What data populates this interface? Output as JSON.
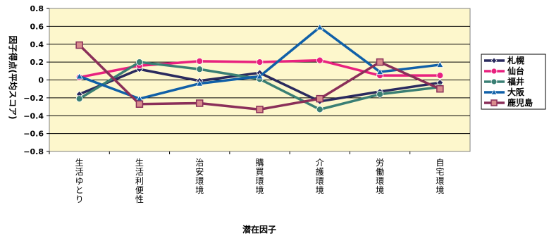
{
  "chart_data": {
    "type": "line",
    "categories": [
      "生活ゆとり",
      "生活利便性",
      "治安環境",
      "購買環境",
      "介護環境",
      "労働環境",
      "自宅環境"
    ],
    "xlabel": "潜在因子",
    "ylabel": "因子得点(平均スコア)",
    "ylim": [
      -0.8,
      0.8
    ],
    "yticks": [
      -0.8,
      -0.6,
      -0.4,
      -0.2,
      0,
      0.2,
      0.4,
      0.6,
      0.8
    ],
    "ytick_labels": [
      "−0.8",
      "−0.6",
      "−0.4",
      "−0.2",
      "0",
      "0.2",
      "0.4",
      "0.6",
      "0.8"
    ],
    "grid": true,
    "legend_position": "right",
    "plot_background": "#fdf7cc",
    "series": [
      {
        "name": "札幌",
        "color": "#2a2a5e",
        "marker": "diamond",
        "values": [
          -0.16,
          0.12,
          -0.01,
          0.08,
          -0.24,
          -0.13,
          -0.03
        ]
      },
      {
        "name": "仙台",
        "color": "#e8217f",
        "marker": "circle",
        "values": [
          0.03,
          0.16,
          0.21,
          0.2,
          0.22,
          0.05,
          0.05
        ]
      },
      {
        "name": "福井",
        "color": "#3a7f74",
        "marker": "circle",
        "values": [
          -0.21,
          0.2,
          0.12,
          0.01,
          -0.33,
          -0.16,
          -0.08
        ]
      },
      {
        "name": "大阪",
        "color": "#1060a8",
        "marker": "triangle",
        "values": [
          0.04,
          -0.21,
          -0.04,
          0.04,
          0.59,
          0.09,
          0.17
        ]
      },
      {
        "name": "鹿児島",
        "color": "#8a2f59",
        "marker": "square",
        "values": [
          0.39,
          -0.27,
          -0.26,
          -0.33,
          -0.21,
          0.2,
          -0.1
        ]
      }
    ]
  }
}
